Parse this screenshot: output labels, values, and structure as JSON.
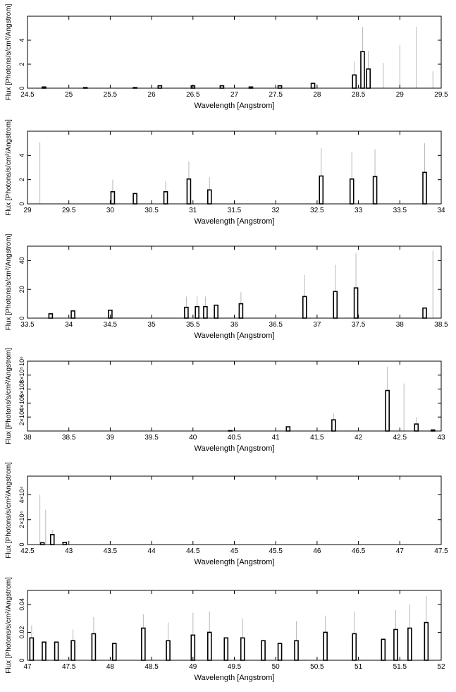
{
  "chart_data": [
    {
      "type": "bar",
      "xlabel": "Wavelength [Angstrom]",
      "ylabel": "Flux [Photons/s/cm²/Angstrom]",
      "xlim": [
        24.5,
        29.5
      ],
      "ylim": [
        0,
        6
      ],
      "xticks": [
        "24.5",
        "25",
        "25.5",
        "26",
        "26.5",
        "27",
        "27.5",
        "28",
        "28.5",
        "29",
        "29.5"
      ],
      "yticks": [
        "0",
        "2",
        "4"
      ],
      "bars": [
        [
          24.7,
          0.1
        ],
        [
          25.2,
          0.05
        ],
        [
          25.8,
          0.05
        ],
        [
          26.1,
          0.2
        ],
        [
          26.5,
          0.2
        ],
        [
          26.85,
          0.2
        ],
        [
          27.2,
          0.1
        ],
        [
          27.55,
          0.2
        ],
        [
          27.95,
          0.4
        ],
        [
          28.45,
          1.1
        ],
        [
          28.55,
          3.05
        ],
        [
          28.62,
          1.6
        ]
      ],
      "errors": [
        [
          28.45,
          2.2
        ],
        [
          28.55,
          5.1
        ],
        [
          28.62,
          3.1
        ],
        [
          28.8,
          2.1
        ],
        [
          29.0,
          3.6
        ],
        [
          29.2,
          5.1
        ],
        [
          29.4,
          1.4
        ]
      ]
    },
    {
      "type": "bar",
      "xlabel": "Wavelength [Angstrom]",
      "ylabel": "Flux [Photons/s/cm²/Angstrom]",
      "xlim": [
        29,
        34
      ],
      "ylim": [
        0,
        6
      ],
      "xticks": [
        "29",
        "29.5",
        "30",
        "30.5",
        "31",
        "31.5",
        "32",
        "32.5",
        "33",
        "33.5",
        "34"
      ],
      "yticks": [
        "0",
        "2",
        "4"
      ],
      "bars": [
        [
          30.03,
          1.0
        ],
        [
          30.3,
          0.85
        ],
        [
          30.67,
          1.0
        ],
        [
          30.95,
          2.05
        ],
        [
          31.2,
          1.15
        ],
        [
          32.55,
          2.3
        ],
        [
          32.92,
          2.05
        ],
        [
          33.2,
          2.25
        ],
        [
          33.8,
          2.6
        ]
      ],
      "errors": [
        [
          29.15,
          5.1
        ],
        [
          30.03,
          2.0
        ],
        [
          30.67,
          1.9
        ],
        [
          30.95,
          3.5
        ],
        [
          31.2,
          2.2
        ],
        [
          32.55,
          4.6
        ],
        [
          32.92,
          4.3
        ],
        [
          33.2,
          4.5
        ],
        [
          33.8,
          5.0
        ],
        [
          34.0,
          4.2
        ]
      ]
    },
    {
      "type": "bar",
      "xlabel": "Wavelength [Angstrom]",
      "ylabel": "Flux [Photons/s/cm²/Angstrom]",
      "xlim": [
        33.5,
        38.5
      ],
      "ylim": [
        0,
        50
      ],
      "xticks": [
        "33.5",
        "34",
        "34.5",
        "35",
        "35.5",
        "36",
        "36.5",
        "37",
        "37.5",
        "38",
        "38.5"
      ],
      "yticks": [
        "0",
        "20",
        "40"
      ],
      "bars": [
        [
          33.78,
          3
        ],
        [
          34.05,
          5
        ],
        [
          34.5,
          5.5
        ],
        [
          35.42,
          7.5
        ],
        [
          35.55,
          8
        ],
        [
          35.65,
          8
        ],
        [
          35.78,
          9
        ],
        [
          36.08,
          10
        ],
        [
          36.85,
          15
        ],
        [
          37.22,
          18.5
        ],
        [
          37.47,
          21
        ],
        [
          38.3,
          7
        ]
      ],
      "errors": [
        [
          35.42,
          15
        ],
        [
          35.55,
          15
        ],
        [
          35.65,
          15
        ],
        [
          36.08,
          18
        ],
        [
          36.85,
          30
        ],
        [
          37.22,
          37
        ],
        [
          37.47,
          45
        ],
        [
          38.4,
          47
        ]
      ]
    },
    {
      "type": "bar",
      "xlabel": "Wavelength [Angstrom]",
      "ylabel": "Flux [Photons/s/cm²/Angstrom]",
      "xlim": [
        38,
        43
      ],
      "ylim": [
        0,
        1000000
      ],
      "xticks": [
        "38",
        "38.5",
        "39",
        "39.5",
        "40",
        "40.5",
        "41",
        "41.5",
        "42",
        "42.5",
        "43"
      ],
      "yticks": [
        "2×10⁵",
        "4×10⁵",
        "6×10⁵",
        "8×10⁵",
        "10⁶"
      ],
      "bars": [
        [
          40.45,
          5000
        ],
        [
          41.15,
          60000
        ],
        [
          41.7,
          160000
        ],
        [
          42.35,
          580000
        ],
        [
          42.7,
          100000
        ],
        [
          42.9,
          15000
        ]
      ],
      "errors": [
        [
          41.7,
          250000
        ],
        [
          42.35,
          920000
        ],
        [
          42.55,
          680000
        ],
        [
          42.7,
          200000
        ]
      ]
    },
    {
      "type": "bar",
      "xlabel": "Wavelength [Angstrom]",
      "ylabel": "Flux [Photons/s/cm²/Angstrom]",
      "xlim": [
        42.5,
        47.5
      ],
      "ylim": [
        0,
        55000
      ],
      "xticks": [
        "42.5",
        "43",
        "43.5",
        "44",
        "44.5",
        "45",
        "45.5",
        "46",
        "46.5",
        "47",
        "47.5"
      ],
      "yticks": [
        "0",
        "2×10⁴",
        "4×10⁴"
      ],
      "bars": [
        [
          42.68,
          1500
        ],
        [
          42.8,
          8000
        ],
        [
          42.95,
          1800
        ]
      ],
      "errors": [
        [
          42.65,
          40000
        ],
        [
          42.72,
          28000
        ],
        [
          42.8,
          12000
        ]
      ]
    },
    {
      "type": "bar",
      "xlabel": "Wavelength [Angstrom]",
      "ylabel": "Flux [Photons/s/cm²/Angstrom]",
      "xlim": [
        47,
        52
      ],
      "ylim": [
        0,
        0.05
      ],
      "xticks": [
        "47",
        "47.5",
        "48",
        "48.5",
        "49",
        "49.5",
        "50",
        "50.5",
        "51",
        "51.5",
        "52"
      ],
      "yticks": [
        "0",
        "0.02",
        "0.04"
      ],
      "bars": [
        [
          47.05,
          0.016
        ],
        [
          47.2,
          0.013
        ],
        [
          47.35,
          0.013
        ],
        [
          47.55,
          0.014
        ],
        [
          47.8,
          0.019
        ],
        [
          48.05,
          0.012
        ],
        [
          48.4,
          0.023
        ],
        [
          48.7,
          0.014
        ],
        [
          49.0,
          0.018
        ],
        [
          49.2,
          0.02
        ],
        [
          49.4,
          0.016
        ],
        [
          49.6,
          0.016
        ],
        [
          49.85,
          0.014
        ],
        [
          50.05,
          0.012
        ],
        [
          50.25,
          0.014
        ],
        [
          50.6,
          0.02
        ],
        [
          50.95,
          0.019
        ],
        [
          51.3,
          0.015
        ],
        [
          51.45,
          0.022
        ],
        [
          51.62,
          0.023
        ],
        [
          51.82,
          0.027
        ]
      ],
      "errors": [
        [
          47.05,
          0.025
        ],
        [
          47.55,
          0.022
        ],
        [
          47.8,
          0.031
        ],
        [
          48.4,
          0.033
        ],
        [
          48.7,
          0.027
        ],
        [
          49.0,
          0.034
        ],
        [
          49.2,
          0.035
        ],
        [
          49.6,
          0.03
        ],
        [
          50.25,
          0.028
        ],
        [
          50.6,
          0.032
        ],
        [
          50.95,
          0.035
        ],
        [
          51.45,
          0.036
        ],
        [
          51.62,
          0.04
        ],
        [
          51.82,
          0.046
        ]
      ]
    }
  ]
}
